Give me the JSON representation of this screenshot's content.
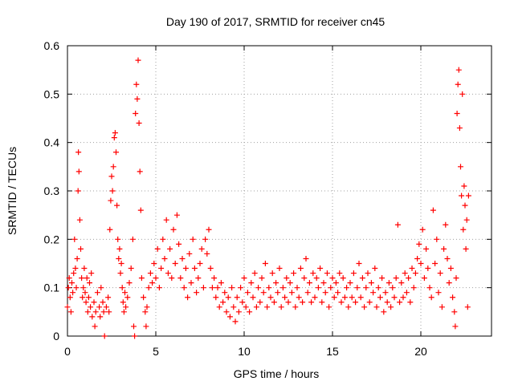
{
  "chart_data": {
    "type": "scatter",
    "title": "Day 190 of 2017, SRMTID for receiver cn45",
    "xlabel": "GPS time / hours",
    "ylabel": "SRMTID / TECUs",
    "xlim": [
      0,
      24
    ],
    "ylim": [
      0,
      0.6
    ],
    "xticks": [
      0,
      5,
      10,
      15,
      20
    ],
    "yticks": [
      0,
      0.1,
      0.2,
      0.3,
      0.4,
      0.5,
      0.6
    ],
    "xtick_labels": [
      "0",
      "5",
      "10",
      "15",
      "20"
    ],
    "ytick_labels": [
      "0",
      "0.1",
      "0.2",
      "0.3",
      "0.4",
      "0.5",
      "0.6"
    ],
    "grid": true,
    "marker": "+",
    "color": "#ff0000",
    "series": [
      {
        "name": "SRMTID",
        "points": [
          [
            0.0,
            0.06
          ],
          [
            0.05,
            0.1
          ],
          [
            0.1,
            0.12
          ],
          [
            0.15,
            0.08
          ],
          [
            0.2,
            0.05
          ],
          [
            0.25,
            0.11
          ],
          [
            0.3,
            0.09
          ],
          [
            0.35,
            0.13
          ],
          [
            0.4,
            0.2
          ],
          [
            0.45,
            0.14
          ],
          [
            0.5,
            0.1
          ],
          [
            0.55,
            0.16
          ],
          [
            0.6,
            0.3
          ],
          [
            0.62,
            0.38
          ],
          [
            0.65,
            0.34
          ],
          [
            0.7,
            0.24
          ],
          [
            0.75,
            0.18
          ],
          [
            0.8,
            0.12
          ],
          [
            0.85,
            0.08
          ],
          [
            0.9,
            0.1
          ],
          [
            0.95,
            0.14
          ],
          [
            1.0,
            0.09
          ],
          [
            1.05,
            0.07
          ],
          [
            1.1,
            0.12
          ],
          [
            1.15,
            0.05
          ],
          [
            1.2,
            0.08
          ],
          [
            1.25,
            0.11
          ],
          [
            1.3,
            0.06
          ],
          [
            1.35,
            0.13
          ],
          [
            1.4,
            0.04
          ],
          [
            1.5,
            0.07
          ],
          [
            1.55,
            0.02
          ],
          [
            1.6,
            0.05
          ],
          [
            1.7,
            0.09
          ],
          [
            1.8,
            0.06
          ],
          [
            1.85,
            0.04
          ],
          [
            1.9,
            0.1
          ],
          [
            2.0,
            0.07
          ],
          [
            2.05,
            0.05
          ],
          [
            2.1,
            0.0
          ],
          [
            2.2,
            0.06
          ],
          [
            2.3,
            0.08
          ],
          [
            2.35,
            0.05
          ],
          [
            2.4,
            0.22
          ],
          [
            2.45,
            0.28
          ],
          [
            2.5,
            0.33
          ],
          [
            2.55,
            0.3
          ],
          [
            2.6,
            0.35
          ],
          [
            2.65,
            0.41
          ],
          [
            2.7,
            0.42
          ],
          [
            2.75,
            0.38
          ],
          [
            2.8,
            0.27
          ],
          [
            2.85,
            0.2
          ],
          [
            2.9,
            0.16
          ],
          [
            2.95,
            0.18
          ],
          [
            3.0,
            0.13
          ],
          [
            3.05,
            0.15
          ],
          [
            3.1,
            0.1
          ],
          [
            3.15,
            0.07
          ],
          [
            3.2,
            0.05
          ],
          [
            3.25,
            0.09
          ],
          [
            3.3,
            0.06
          ],
          [
            3.4,
            0.08
          ],
          [
            3.5,
            0.11
          ],
          [
            3.6,
            0.14
          ],
          [
            3.7,
            0.2
          ],
          [
            3.75,
            0.02
          ],
          [
            3.8,
            0.0
          ],
          [
            3.85,
            0.46
          ],
          [
            3.9,
            0.52
          ],
          [
            3.95,
            0.49
          ],
          [
            4.0,
            0.57
          ],
          [
            4.05,
            0.44
          ],
          [
            4.1,
            0.34
          ],
          [
            4.15,
            0.26
          ],
          [
            4.2,
            0.12
          ],
          [
            4.3,
            0.08
          ],
          [
            4.4,
            0.05
          ],
          [
            4.45,
            0.02
          ],
          [
            4.5,
            0.06
          ],
          [
            4.6,
            0.1
          ],
          [
            4.7,
            0.13
          ],
          [
            4.8,
            0.11
          ],
          [
            4.9,
            0.15
          ],
          [
            5.0,
            0.12
          ],
          [
            5.1,
            0.18
          ],
          [
            5.2,
            0.1
          ],
          [
            5.3,
            0.14
          ],
          [
            5.4,
            0.2
          ],
          [
            5.5,
            0.16
          ],
          [
            5.6,
            0.24
          ],
          [
            5.7,
            0.13
          ],
          [
            5.8,
            0.18
          ],
          [
            5.9,
            0.12
          ],
          [
            6.0,
            0.22
          ],
          [
            6.1,
            0.15
          ],
          [
            6.2,
            0.25
          ],
          [
            6.3,
            0.19
          ],
          [
            6.4,
            0.12
          ],
          [
            6.5,
            0.16
          ],
          [
            6.6,
            0.1
          ],
          [
            6.7,
            0.14
          ],
          [
            6.8,
            0.08
          ],
          [
            6.9,
            0.17
          ],
          [
            7.0,
            0.11
          ],
          [
            7.1,
            0.2
          ],
          [
            7.2,
            0.14
          ],
          [
            7.3,
            0.09
          ],
          [
            7.4,
            0.12
          ],
          [
            7.5,
            0.15
          ],
          [
            7.6,
            0.18
          ],
          [
            7.7,
            0.1
          ],
          [
            7.8,
            0.2
          ],
          [
            7.9,
            0.17
          ],
          [
            8.0,
            0.22
          ],
          [
            8.1,
            0.14
          ],
          [
            8.2,
            0.1
          ],
          [
            8.3,
            0.12
          ],
          [
            8.4,
            0.08
          ],
          [
            8.5,
            0.1
          ],
          [
            8.6,
            0.06
          ],
          [
            8.7,
            0.11
          ],
          [
            8.8,
            0.07
          ],
          [
            8.9,
            0.09
          ],
          [
            9.0,
            0.05
          ],
          [
            9.1,
            0.08
          ],
          [
            9.2,
            0.04
          ],
          [
            9.3,
            0.1
          ],
          [
            9.4,
            0.06
          ],
          [
            9.5,
            0.03
          ],
          [
            9.6,
            0.08
          ],
          [
            9.7,
            0.05
          ],
          [
            9.8,
            0.1
          ],
          [
            9.9,
            0.07
          ],
          [
            10.0,
            0.12
          ],
          [
            10.1,
            0.06
          ],
          [
            10.2,
            0.09
          ],
          [
            10.3,
            0.05
          ],
          [
            10.4,
            0.11
          ],
          [
            10.5,
            0.08
          ],
          [
            10.6,
            0.13
          ],
          [
            10.7,
            0.06
          ],
          [
            10.8,
            0.1
          ],
          [
            10.9,
            0.07
          ],
          [
            11.0,
            0.12
          ],
          [
            11.1,
            0.09
          ],
          [
            11.2,
            0.15
          ],
          [
            11.3,
            0.06
          ],
          [
            11.4,
            0.1
          ],
          [
            11.5,
            0.08
          ],
          [
            11.6,
            0.13
          ],
          [
            11.7,
            0.07
          ],
          [
            11.8,
            0.11
          ],
          [
            11.9,
            0.09
          ],
          [
            12.0,
            0.14
          ],
          [
            12.1,
            0.06
          ],
          [
            12.2,
            0.1
          ],
          [
            12.3,
            0.08
          ],
          [
            12.4,
            0.12
          ],
          [
            12.5,
            0.07
          ],
          [
            12.6,
            0.11
          ],
          [
            12.7,
            0.09
          ],
          [
            12.8,
            0.13
          ],
          [
            12.9,
            0.06
          ],
          [
            13.0,
            0.1
          ],
          [
            13.1,
            0.08
          ],
          [
            13.2,
            0.14
          ],
          [
            13.3,
            0.07
          ],
          [
            13.4,
            0.12
          ],
          [
            13.5,
            0.16
          ],
          [
            13.6,
            0.09
          ],
          [
            13.7,
            0.11
          ],
          [
            13.8,
            0.07
          ],
          [
            13.9,
            0.13
          ],
          [
            14.0,
            0.08
          ],
          [
            14.1,
            0.12
          ],
          [
            14.2,
            0.1
          ],
          [
            14.3,
            0.14
          ],
          [
            14.4,
            0.07
          ],
          [
            14.5,
            0.11
          ],
          [
            14.6,
            0.09
          ],
          [
            14.7,
            0.13
          ],
          [
            14.8,
            0.06
          ],
          [
            14.9,
            0.1
          ],
          [
            15.0,
            0.12
          ],
          [
            15.1,
            0.08
          ],
          [
            15.2,
            0.11
          ],
          [
            15.3,
            0.09
          ],
          [
            15.4,
            0.13
          ],
          [
            15.5,
            0.07
          ],
          [
            15.6,
            0.12
          ],
          [
            15.7,
            0.08
          ],
          [
            15.8,
            0.1
          ],
          [
            15.9,
            0.06
          ],
          [
            16.0,
            0.11
          ],
          [
            16.1,
            0.08
          ],
          [
            16.2,
            0.13
          ],
          [
            16.3,
            0.07
          ],
          [
            16.4,
            0.1
          ],
          [
            16.5,
            0.15
          ],
          [
            16.6,
            0.08
          ],
          [
            16.7,
            0.12
          ],
          [
            16.8,
            0.06
          ],
          [
            16.9,
            0.1
          ],
          [
            17.0,
            0.13
          ],
          [
            17.1,
            0.07
          ],
          [
            17.2,
            0.11
          ],
          [
            17.3,
            0.09
          ],
          [
            17.4,
            0.14
          ],
          [
            17.5,
            0.06
          ],
          [
            17.6,
            0.1
          ],
          [
            17.7,
            0.08
          ],
          [
            17.8,
            0.12
          ],
          [
            17.9,
            0.05
          ],
          [
            18.0,
            0.09
          ],
          [
            18.1,
            0.07
          ],
          [
            18.2,
            0.11
          ],
          [
            18.3,
            0.06
          ],
          [
            18.4,
            0.1
          ],
          [
            18.5,
            0.08
          ],
          [
            18.6,
            0.12
          ],
          [
            18.7,
            0.23
          ],
          [
            18.8,
            0.07
          ],
          [
            18.9,
            0.11
          ],
          [
            19.0,
            0.08
          ],
          [
            19.1,
            0.13
          ],
          [
            19.2,
            0.09
          ],
          [
            19.3,
            0.12
          ],
          [
            19.4,
            0.07
          ],
          [
            19.5,
            0.14
          ],
          [
            19.6,
            0.1
          ],
          [
            19.7,
            0.13
          ],
          [
            19.8,
            0.16
          ],
          [
            19.9,
            0.19
          ],
          [
            20.0,
            0.15
          ],
          [
            20.1,
            0.22
          ],
          [
            20.2,
            0.12
          ],
          [
            20.3,
            0.18
          ],
          [
            20.4,
            0.14
          ],
          [
            20.5,
            0.1
          ],
          [
            20.6,
            0.08
          ],
          [
            20.7,
            0.26
          ],
          [
            20.8,
            0.15
          ],
          [
            20.9,
            0.2
          ],
          [
            21.0,
            0.09
          ],
          [
            21.1,
            0.13
          ],
          [
            21.2,
            0.06
          ],
          [
            21.3,
            0.18
          ],
          [
            21.4,
            0.23
          ],
          [
            21.5,
            0.16
          ],
          [
            21.6,
            0.11
          ],
          [
            21.7,
            0.14
          ],
          [
            21.8,
            0.08
          ],
          [
            21.9,
            0.05
          ],
          [
            21.95,
            0.02
          ],
          [
            22.0,
            0.12
          ],
          [
            22.05,
            0.46
          ],
          [
            22.1,
            0.52
          ],
          [
            22.15,
            0.55
          ],
          [
            22.2,
            0.43
          ],
          [
            22.25,
            0.35
          ],
          [
            22.3,
            0.29
          ],
          [
            22.35,
            0.5
          ],
          [
            22.4,
            0.22
          ],
          [
            22.45,
            0.31
          ],
          [
            22.5,
            0.27
          ],
          [
            22.55,
            0.18
          ],
          [
            22.6,
            0.24
          ],
          [
            22.65,
            0.06
          ],
          [
            22.7,
            0.29
          ]
        ]
      }
    ]
  }
}
